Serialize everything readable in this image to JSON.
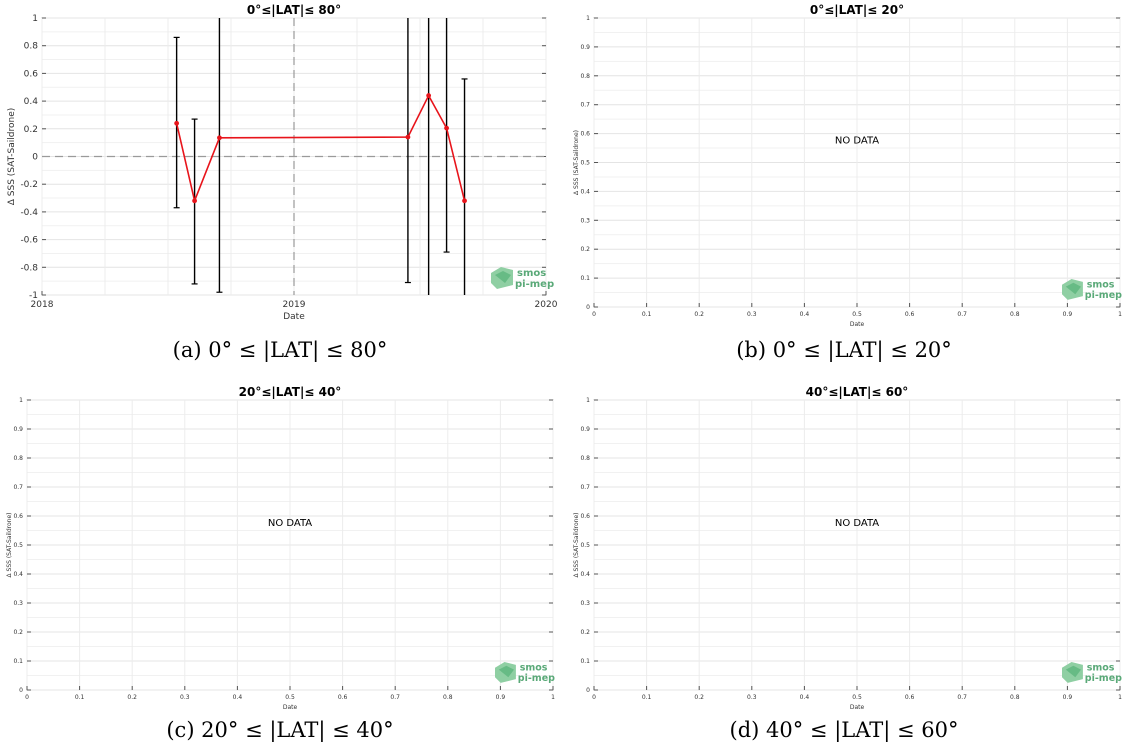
{
  "chart_data": [
    {
      "type": "line",
      "title": "0°≤|LAT|≤ 80°",
      "xlabel": "Date",
      "ylabel": "Δ SSS (SAT-Saildrone)",
      "x_ticks": [
        "2018",
        "2019",
        "2020"
      ],
      "xlim": [
        "2018-01-01",
        "2020-01-01"
      ],
      "ylim": [
        -1,
        1
      ],
      "y_ticks": [
        "-1",
        "-0.8",
        "-0.6",
        "-0.4",
        "-0.2",
        "0",
        "0.2",
        "0.4",
        "0.6",
        "0.8",
        "1"
      ],
      "reference_lines": {
        "x": "2019-01-01",
        "y": 0
      },
      "grid": true,
      "series": [
        {
          "color": "#e8141b",
          "x": [
            "2018-07-15",
            "2018-08-10",
            "2018-09-15",
            "2019-06-15",
            "2019-07-15",
            "2019-08-10",
            "2019-09-05"
          ],
          "values": [
            0.24,
            -0.32,
            0.135,
            0.14,
            0.44,
            0.205,
            -0.32
          ],
          "error_low": [
            -0.37,
            -0.92,
            -0.98,
            -0.91,
            -1.0,
            -0.69,
            -1.0
          ],
          "error_high": [
            0.86,
            0.27,
            1.0,
            1.0,
            1.0,
            1.0,
            0.56
          ]
        }
      ],
      "watermark": "smos pi-mep",
      "caption": "(a) 0° ≤ |LAT| ≤ 80°"
    },
    {
      "type": "line",
      "title": "0°≤|LAT|≤ 20°",
      "xlabel": "Date",
      "ylabel": "Δ SSS (SAT-Saildrone)",
      "xlim": [
        0,
        1
      ],
      "ylim": [
        0,
        1
      ],
      "x_ticks": [
        "0",
        "0.1",
        "0.2",
        "0.3",
        "0.4",
        "0.5",
        "0.6",
        "0.7",
        "0.8",
        "0.9",
        "1"
      ],
      "y_ticks": [
        "0",
        "0.1",
        "0.2",
        "0.3",
        "0.4",
        "0.5",
        "0.6",
        "0.7",
        "0.8",
        "0.9",
        "1"
      ],
      "grid": true,
      "message": "NO DATA",
      "watermark": "smos pi-mep",
      "caption": "(b) 0° ≤ |LAT| ≤ 20°"
    },
    {
      "type": "line",
      "title": "20°≤|LAT|≤ 40°",
      "xlabel": "Date",
      "ylabel": "Δ SSS (SAT-Saildrone)",
      "xlim": [
        0,
        1
      ],
      "ylim": [
        0,
        1
      ],
      "x_ticks": [
        "0",
        "0.1",
        "0.2",
        "0.3",
        "0.4",
        "0.5",
        "0.6",
        "0.7",
        "0.8",
        "0.9",
        "1"
      ],
      "y_ticks": [
        "0",
        "0.1",
        "0.2",
        "0.3",
        "0.4",
        "0.5",
        "0.6",
        "0.7",
        "0.8",
        "0.9",
        "1"
      ],
      "grid": true,
      "message": "NO DATA",
      "watermark": "smos pi-mep",
      "caption": "(c) 20° ≤ |LAT| ≤ 40°"
    },
    {
      "type": "line",
      "title": "40°≤|LAT|≤ 60°",
      "xlabel": "Date",
      "ylabel": "Δ SSS (SAT-Saildrone)",
      "xlim": [
        0,
        1
      ],
      "ylim": [
        0,
        1
      ],
      "x_ticks": [
        "0",
        "0.1",
        "0.2",
        "0.3",
        "0.4",
        "0.5",
        "0.6",
        "0.7",
        "0.8",
        "0.9",
        "1"
      ],
      "y_ticks": [
        "0",
        "0.1",
        "0.2",
        "0.3",
        "0.4",
        "0.5",
        "0.6",
        "0.7",
        "0.8",
        "0.9",
        "1"
      ],
      "grid": true,
      "message": "NO DATA",
      "watermark": "smos pi-mep",
      "caption": "(d) 40° ≤ |LAT| ≤ 60°"
    }
  ]
}
